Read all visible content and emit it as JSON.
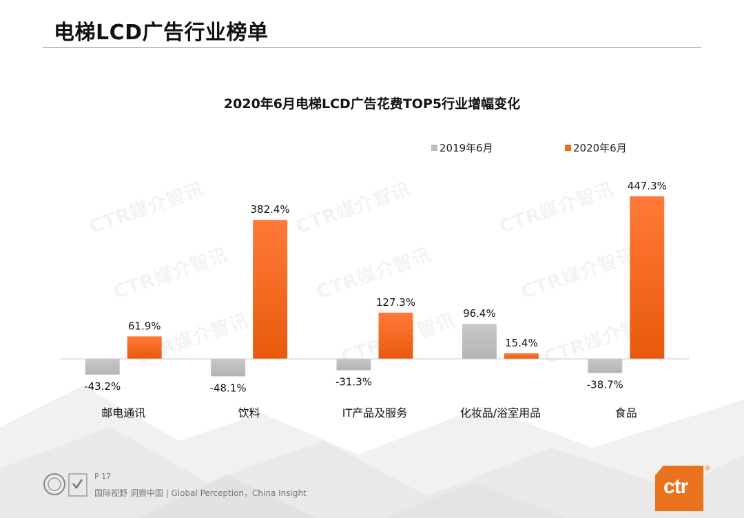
{
  "slide": {
    "title": "电梯LCD广告行业榜单",
    "page_number": "P 17",
    "footer": "国际视野  洞察中国 |  Global Perception，China Insight",
    "watermark": "CTR媒介智讯",
    "brand_logo_text": "ctr",
    "brand_reg_mark": "®"
  },
  "colors": {
    "series_2019": "#bdbdbd",
    "series_2020": "#f26a1b",
    "brand": "#e8731c"
  },
  "chart_data": {
    "type": "bar",
    "title": "2020年6月电梯LCD广告花费TOP5行业增幅变化",
    "categories": [
      "邮电通讯",
      "饮料",
      "IT产品及服务",
      "化妆品/浴室用品",
      "食品"
    ],
    "series": [
      {
        "name": "2019年6月",
        "values": [
          -43.2,
          -48.1,
          -31.3,
          96.4,
          -38.7
        ]
      },
      {
        "name": "2020年6月",
        "values": [
          61.9,
          382.4,
          127.3,
          15.4,
          447.3
        ]
      }
    ],
    "data_labels": {
      "2019年6月": [
        "-43.2%",
        "-48.1%",
        "-31.3%",
        "96.4%",
        "-38.7%"
      ],
      "2020年6月": [
        "61.9%",
        "382.4%",
        "127.3%",
        "15.4%",
        "447.3%"
      ]
    },
    "unit": "%",
    "legend_position": "top-right",
    "grid": false
  }
}
